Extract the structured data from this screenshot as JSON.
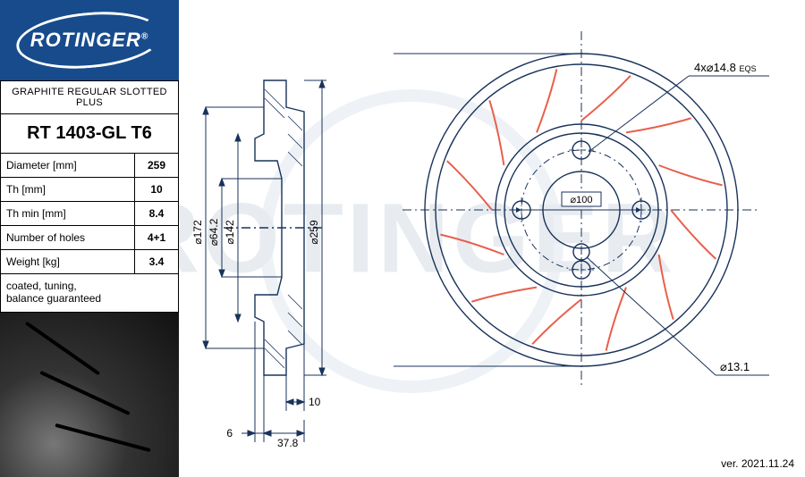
{
  "logo": {
    "brand": "ROTINGER",
    "reg": "®"
  },
  "spec": {
    "title": "GRAPHITE REGULAR SLOTTED PLUS",
    "part_number": "RT 1403-GL T6",
    "rows": [
      {
        "label": "Diameter [mm]",
        "value": "259"
      },
      {
        "label": "Th [mm]",
        "value": "10"
      },
      {
        "label": "Th min [mm]",
        "value": "8.4"
      },
      {
        "label": "Number of holes",
        "value": "4+1"
      },
      {
        "label": "Weight [kg]",
        "value": "3.4"
      }
    ],
    "footer": "coated, tuning,\nbalance guaranteed"
  },
  "watermark": "ROTINGER",
  "version": "ver. 2021.11.24",
  "side_view": {
    "stroke": "#18325a",
    "dims": {
      "d172": "⌀172",
      "d64_2": "⌀64.2",
      "d142": "⌀142",
      "d259": "⌀259",
      "w10": "10",
      "w6": "6",
      "w37_8": "37.8"
    },
    "font_size": 12
  },
  "front_view": {
    "stroke": "#18325a",
    "slot_color": "#e8604c",
    "callout1": "4x⌀14.8",
    "callout1_suffix": "EQS",
    "callout2": "⌀13.1",
    "pcd": "⌀100",
    "font_size": 12,
    "outer_d": 259,
    "hub_d": 142,
    "bore_d": 64.2,
    "bolt_pcd": 100,
    "bolt_d": 14.8,
    "center_hole_d": 13.1,
    "n_bolts": 4,
    "n_slots": 12
  },
  "colors": {
    "bg": "#ffffff",
    "logo_bg": "#174b8c",
    "watermark": "#e8ecf0",
    "line": "#18325a",
    "slot": "#e8604c",
    "text": "#000000"
  }
}
